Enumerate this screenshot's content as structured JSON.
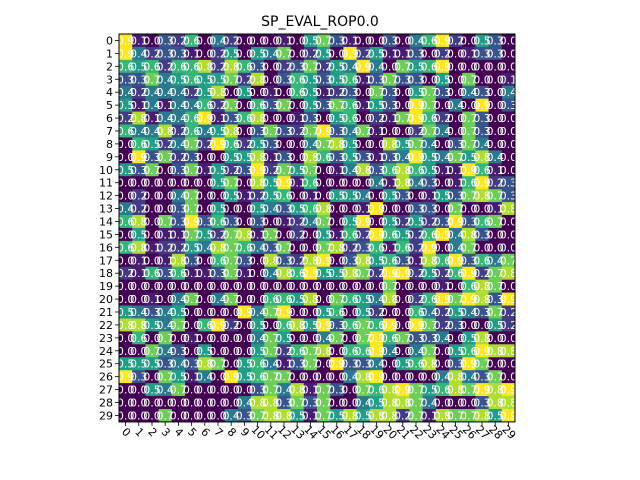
{
  "chart_data": {
    "type": "heatmap",
    "title": "SP_EVAL_ROP0.0",
    "xlabel": "",
    "ylabel": "",
    "x_categories": [
      "0",
      "1",
      "2",
      "3",
      "4",
      "5",
      "6",
      "7",
      "8",
      "9",
      "10",
      "11",
      "12",
      "13",
      "14",
      "15",
      "16",
      "17",
      "18",
      "19",
      "20",
      "21",
      "22",
      "23",
      "24",
      "25",
      "26",
      "27",
      "28",
      "29"
    ],
    "y_categories": [
      "0",
      "1",
      "2",
      "3",
      "4",
      "5",
      "6",
      "7",
      "8",
      "9",
      "10",
      "11",
      "12",
      "13",
      "14",
      "15",
      "16",
      "17",
      "18",
      "19",
      "20",
      "21",
      "22",
      "23",
      "24",
      "25",
      "26",
      "27",
      "28",
      "29"
    ],
    "colormap": "viridis",
    "x_tick_rotation": -45,
    "grid": false,
    "values": [
      [
        0.9,
        0.1,
        0.0,
        0.3,
        0.2,
        0.6,
        0.0,
        0.4,
        0.2,
        0.0,
        0.0,
        0.0,
        0.1,
        0.0,
        0.5,
        0.7,
        0.3,
        0.1,
        0.0,
        0.0,
        0.3,
        0.0,
        0.4,
        0.6,
        0.9,
        0.2,
        0.0,
        0.5,
        0.3,
        0.0
      ],
      [
        0.9,
        0.4,
        0.2,
        0.3,
        0.3,
        0.1,
        0.0,
        0.2,
        0.5,
        0.0,
        0.5,
        0.4,
        0.7,
        0.0,
        0.2,
        0.5,
        0.0,
        0.9,
        0.2,
        0.5,
        0.1,
        0.1,
        0.3,
        0.0,
        0.2,
        0.0,
        0.1,
        0.3,
        0.3,
        0.0
      ],
      [
        0.6,
        0.5,
        0.6,
        0.2,
        0.6,
        0.6,
        0.8,
        0.2,
        0.8,
        0.6,
        0.3,
        0.0,
        0.2,
        0.3,
        0.7,
        0.2,
        0.5,
        0.4,
        0.9,
        0.4,
        0.0,
        0.7,
        0.5,
        0.6,
        0.9,
        0.0,
        0.0,
        0.0,
        0.0,
        0.0
      ],
      [
        0.3,
        0.3,
        0.7,
        0.4,
        0.5,
        0.6,
        0.5,
        0.5,
        0.7,
        0.2,
        0.8,
        0.0,
        0.3,
        0.6,
        0.5,
        0.3,
        0.5,
        0.6,
        0.1,
        0.3,
        0.7,
        0.3,
        0.3,
        0.0,
        0.5,
        0.0,
        0.7,
        0.0,
        0.0,
        0.1
      ],
      [
        0.4,
        0.2,
        0.4,
        0.4,
        0.4,
        0.2,
        0.5,
        0.8,
        0.0,
        0.5,
        0.0,
        0.1,
        0.0,
        0.6,
        0.5,
        0.1,
        0.2,
        0.3,
        0.0,
        0.7,
        0.3,
        0.0,
        0.5,
        0.7,
        0.3,
        0.0,
        0.4,
        0.3,
        0.0,
        0.4
      ],
      [
        0.5,
        0.1,
        0.4,
        0.1,
        0.4,
        0.4,
        0.6,
        0.2,
        0.7,
        0.0,
        0.6,
        0.3,
        0.7,
        0.0,
        0.5,
        0.3,
        0.7,
        0.6,
        0.1,
        0.5,
        0.3,
        0.0,
        0.9,
        0.7,
        0.0,
        0.4,
        0.0,
        0.9,
        0.0,
        0.3
      ],
      [
        0.2,
        0.8,
        0.1,
        0.4,
        0.4,
        0.6,
        0.9,
        0.1,
        0.3,
        0.6,
        0.8,
        0.0,
        0.0,
        0.1,
        0.3,
        0.0,
        0.5,
        0.6,
        0.0,
        0.2,
        0.1,
        0.7,
        0.9,
        0.6,
        0.2,
        0.0,
        0.7,
        0.3,
        0.0,
        0.0
      ],
      [
        0.6,
        0.4,
        0.4,
        0.8,
        0.2,
        0.6,
        0.4,
        0.5,
        0.8,
        0.0,
        0.3,
        0.7,
        0.3,
        0.2,
        0.7,
        0.9,
        0.3,
        0.4,
        0.7,
        0.1,
        0.0,
        0.0,
        0.2,
        0.7,
        0.4,
        0.0,
        0.7,
        0.3,
        0.0,
        0.0
      ],
      [
        0.0,
        0.6,
        0.5,
        0.2,
        0.4,
        0.7,
        0.2,
        0.9,
        0.6,
        0.2,
        0.5,
        0.3,
        0.0,
        0.0,
        0.4,
        0.7,
        0.8,
        0.5,
        0.0,
        0.0,
        0.8,
        0.5,
        0.7,
        0.4,
        0.0,
        0.3,
        0.7,
        0.4,
        0.0,
        0.0
      ],
      [
        0.0,
        0.9,
        0.3,
        0.7,
        0.2,
        0.3,
        0.0,
        0.0,
        0.5,
        0.5,
        0.8,
        0.1,
        0.3,
        0.0,
        0.8,
        0.6,
        0.3,
        0.5,
        0.3,
        0.1,
        0.3,
        0.4,
        0.9,
        0.5,
        0.4,
        0.7,
        0.5,
        0.8,
        0.4,
        0.0
      ],
      [
        0.5,
        0.3,
        0.7,
        0.0,
        0.3,
        0.7,
        0.1,
        0.5,
        0.2,
        0.3,
        0.9,
        0.2,
        0.7,
        0.5,
        0.7,
        0.0,
        0.1,
        0.4,
        0.8,
        0.3,
        0.6,
        0.8,
        0.6,
        0.5,
        0.1,
        0.1,
        0.9,
        0.6,
        0.1,
        0.0
      ],
      [
        0.0,
        0.0,
        0.0,
        0.0,
        0.0,
        0.0,
        0.0,
        0.5,
        0.7,
        0.0,
        0.8,
        0.5,
        0.9,
        0.1,
        0.6,
        0.0,
        0.0,
        0.0,
        0.0,
        0.4,
        0.1,
        0.8,
        0.4,
        0.3,
        0.0,
        0.1,
        0.6,
        0.9,
        0.2,
        0.3
      ],
      [
        0.0,
        0.2,
        0.0,
        0.0,
        0.4,
        0.7,
        0.0,
        0.0,
        0.5,
        0.1,
        0.2,
        0.5,
        0.6,
        0.0,
        0.1,
        0.0,
        0.5,
        0.5,
        0.4,
        0.0,
        0.5,
        0.3,
        0.0,
        0.1,
        0.5,
        0.3,
        0.7,
        0.8,
        0.7,
        0.3
      ],
      [
        0.4,
        0.2,
        0.0,
        0.0,
        0.3,
        0.7,
        0.0,
        0.5,
        0.0,
        0.0,
        0.5,
        0.4,
        0.3,
        0.5,
        0.6,
        0.8,
        0.0,
        0.0,
        0.1,
        0.9,
        0.0,
        0.0,
        0.3,
        0.3,
        0.0,
        0.7,
        0.0,
        0.0,
        0.1,
        0.8
      ],
      [
        0.6,
        0.8,
        0.0,
        0.7,
        0.3,
        0.9,
        0.3,
        0.6,
        0.3,
        0.0,
        0.3,
        0.0,
        0.1,
        0.2,
        0.4,
        0.7,
        0.0,
        0.5,
        0.9,
        0.0,
        0.5,
        0.2,
        0.5,
        0.2,
        0.3,
        0.9,
        0.3,
        0.6,
        0.7,
        0.0
      ],
      [
        0.0,
        0.5,
        0.0,
        0.1,
        0.1,
        0.7,
        0.5,
        0.2,
        0.7,
        0.8,
        0.1,
        0.7,
        0.0,
        0.2,
        0.0,
        0.5,
        0.1,
        0.6,
        0.2,
        0.9,
        0.6,
        0.5,
        0.2,
        0.6,
        0.9,
        0.4,
        0.8,
        0.3,
        0.0,
        0.0
      ],
      [
        0.6,
        0.8,
        0.1,
        0.2,
        0.2,
        0.5,
        0.4,
        0.8,
        0.7,
        0.6,
        0.4,
        0.3,
        0.7,
        0.0,
        0.0,
        0.7,
        0.8,
        0.2,
        0.3,
        0.6,
        0.1,
        0.6,
        0.2,
        0.9,
        0.0,
        0.4,
        0.7,
        0.0,
        0.0,
        0.0
      ],
      [
        0.0,
        0.1,
        0.0,
        0.1,
        0.8,
        0.3,
        0.0,
        0.6,
        0.7,
        0.3,
        0.0,
        0.8,
        0.3,
        0.2,
        0.8,
        0.9,
        0.0,
        0.3,
        0.8,
        0.5,
        0.6,
        0.3,
        0.1,
        0.8,
        0.6,
        0.9,
        0.3,
        0.6,
        0.4,
        0.7
      ],
      [
        0.2,
        0.1,
        0.6,
        0.3,
        0.6,
        0.1,
        0.1,
        0.3,
        0.7,
        0.1,
        0.0,
        0.4,
        0.8,
        0.6,
        0.9,
        0.5,
        0.5,
        0.8,
        0.7,
        0.2,
        0.9,
        0.9,
        0.2,
        0.5,
        0.2,
        0.6,
        0.9,
        0.2,
        0.7,
        0.8
      ],
      [
        0.0,
        0.0,
        0.0,
        0.0,
        0.0,
        0.0,
        0.0,
        0.0,
        0.0,
        0.0,
        0.0,
        0.0,
        0.0,
        0.0,
        0.0,
        0.0,
        0.0,
        0.0,
        0.0,
        0.0,
        0.7,
        0.0,
        0.0,
        0.0,
        0.1,
        0.0,
        0.6,
        0.8,
        0.7,
        0.0
      ],
      [
        0.0,
        0.0,
        0.1,
        0.0,
        0.4,
        0.7,
        0.0,
        0.4,
        0.7,
        0.0,
        0.0,
        0.6,
        0.6,
        0.5,
        0.8,
        0.0,
        0.7,
        0.6,
        0.5,
        0.4,
        0.8,
        0.0,
        0.2,
        0.6,
        0.9,
        0.7,
        0.9,
        0.8,
        0.3,
        0.9
      ],
      [
        0.5,
        0.4,
        0.3,
        0.4,
        0.5,
        0.0,
        0.0,
        0.0,
        0.0,
        0.9,
        0.4,
        0.7,
        0.9,
        0.0,
        0.0,
        0.5,
        0.6,
        0.0,
        0.5,
        0.2,
        0.0,
        0.0,
        0.6,
        0.4,
        0.2,
        0.5,
        0.4,
        0.3,
        0.7,
        0.2
      ],
      [
        0.8,
        0.8,
        0.5,
        0.4,
        0.7,
        0.0,
        0.6,
        0.9,
        0.2,
        0.0,
        0.5,
        0.0,
        0.6,
        0.8,
        0.5,
        0.9,
        0.3,
        0.6,
        0.7,
        0.6,
        0.9,
        0.0,
        0.9,
        0.7,
        0.2,
        0.3,
        0.0,
        0.0,
        0.5,
        0.2
      ],
      [
        0.0,
        0.6,
        0.0,
        0.7,
        0.0,
        0.1,
        0.0,
        0.0,
        0.0,
        0.0,
        0.4,
        0.7,
        0.5,
        0.0,
        0.0,
        0.4,
        0.7,
        0.0,
        0.7,
        0.9,
        0.6,
        0.7,
        0.3,
        0.3,
        0.4,
        0.0,
        0.5,
        0.8,
        0.0,
        0.0
      ],
      [
        0.0,
        0.0,
        0.7,
        0.4,
        0.3,
        0.0,
        0.5,
        0.0,
        0.0,
        0.0,
        0.5,
        0.7,
        0.2,
        0.6,
        0.7,
        0.8,
        0.0,
        0.6,
        0.6,
        0.9,
        0.4,
        0.0,
        0.4,
        0.7,
        0.0,
        0.5,
        0.6,
        0.9,
        0.8,
        0.8
      ],
      [
        0.5,
        0.5,
        0.5,
        0.3,
        0.4,
        0.3,
        0.8,
        0.7,
        0.0,
        0.5,
        0.6,
        0.4,
        0.1,
        0.3,
        0.7,
        0.0,
        0.9,
        0.3,
        0.3,
        0.4,
        0.0,
        0.5,
        0.6,
        0.8,
        0.0,
        0.3,
        0.9,
        0.7,
        0.0,
        0.0
      ],
      [
        0.9,
        0.3,
        0.0,
        0.7,
        0.5,
        0.1,
        0.4,
        0.0,
        0.9,
        0.5,
        0.6,
        0.7,
        0.7,
        0.0,
        0.0,
        0.0,
        0.0,
        0.4,
        0.8,
        0.9,
        0.0,
        0.0,
        0.0,
        0.0,
        0.4,
        0.8,
        0.4,
        0.3,
        0.7,
        0.0
      ],
      [
        0.0,
        0.0,
        0.5,
        0.4,
        0.7,
        0.0,
        0.0,
        0.0,
        0.0,
        0.0,
        0.3,
        0.7,
        0.4,
        0.8,
        0.1,
        0.7,
        0.3,
        0.0,
        0.7,
        0.6,
        0.8,
        0.9,
        0.7,
        0.5,
        0.6,
        0.8,
        0.7,
        0.9,
        0.8,
        0.9
      ],
      [
        0.0,
        0.0,
        0.0,
        0.0,
        0.0,
        0.0,
        0.0,
        0.0,
        0.0,
        0.4,
        0.8,
        0.8,
        0.3,
        0.7,
        0.3,
        0.7,
        0.0,
        0.0,
        0.4,
        0.5,
        0.8,
        0.8,
        0.7,
        0.4,
        0.0,
        0.0,
        0.0,
        0.3,
        0.8,
        0.8
      ],
      [
        0.0,
        0.0,
        0.0,
        0.7,
        0.0,
        0.0,
        0.0,
        0.0,
        0.4,
        0.3,
        0.7,
        0.8,
        0.8,
        0.5,
        0.1,
        0.7,
        0.5,
        0.8,
        0.5,
        0.8,
        0.8,
        0.2,
        0.7,
        0.1,
        0.8,
        0.7,
        0.7,
        0.8,
        0.5,
        0.9
      ]
    ]
  }
}
